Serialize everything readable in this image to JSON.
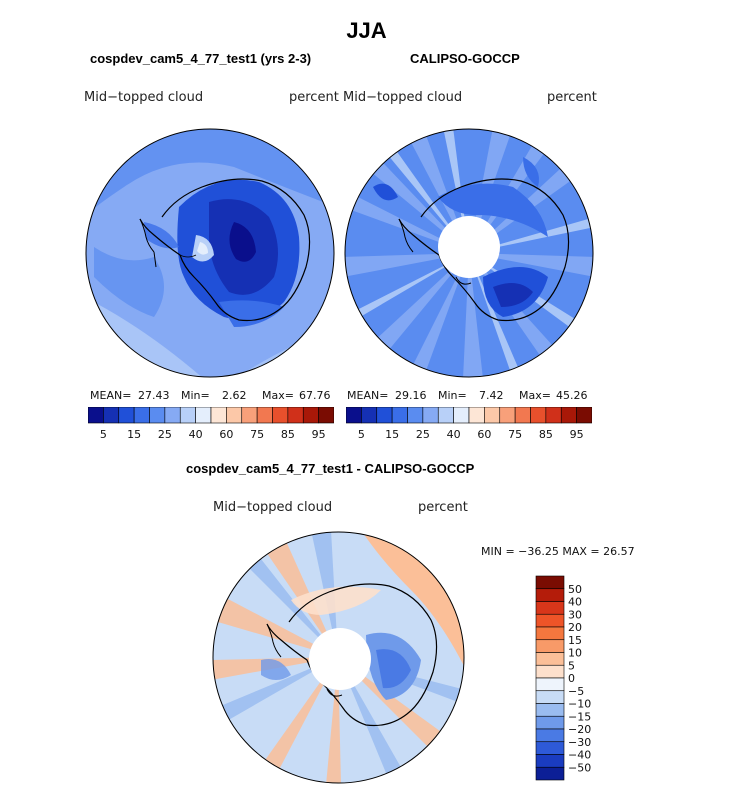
{
  "figure": {
    "title": "JJA",
    "panels": [
      {
        "case_title": "cospdev_cam5_4_77_test1 (yrs 2-3)",
        "variable": "Mid−topped cloud",
        "units": "percent",
        "stats": {
          "mean_label": "MEAN=",
          "mean": "27.43",
          "min_label": "Min=",
          "min": "2.62",
          "max_label": "Max=",
          "max": "67.76"
        }
      },
      {
        "case_title": "CALIPSO-GOCCP",
        "variable": "Mid−topped cloud",
        "units": "percent",
        "stats": {
          "mean_label": "MEAN=",
          "mean": "29.16",
          "min_label": "Min=",
          "min": "7.42",
          "max_label": "Max=",
          "max": "45.26"
        }
      }
    ],
    "diff_panel": {
      "case_title": "cospdev_cam5_4_77_test1 - CALIPSO-GOCCP",
      "variable": "Mid−topped cloud",
      "units": "percent",
      "minmax": "MIN = −36.25 MAX =   26.57"
    },
    "abs_colorbar": {
      "labels": [
        "5",
        "15",
        "25",
        "40",
        "60",
        "75",
        "85",
        "95"
      ],
      "colors": [
        "#0a0f8c",
        "#1530b4",
        "#2050d8",
        "#3a6ee8",
        "#5a8cf0",
        "#86aaf4",
        "#b8d0f8",
        "#e4eefc",
        "#fde6d6",
        "#fcc8a8",
        "#f8a07a",
        "#f27850",
        "#e8502c",
        "#d0301a",
        "#a81808",
        "#7a0c02"
      ]
    },
    "diff_colorbar": {
      "labels": [
        "50",
        "40",
        "30",
        "20",
        "15",
        "10",
        "5",
        "0",
        "−5",
        "−10",
        "−15",
        "−20",
        "−30",
        "−40",
        "−50"
      ],
      "colors": [
        "#7a0c02",
        "#b41c0a",
        "#d8361a",
        "#ee5428",
        "#f4773e",
        "#f89a68",
        "#fbbf98",
        "#fde0cc",
        "#eef4fc",
        "#c8dcf6",
        "#9abcf0",
        "#6f9aea",
        "#4a7ae4",
        "#2e5ad8",
        "#1a3cc0",
        "#0c1f96"
      ]
    }
  }
}
